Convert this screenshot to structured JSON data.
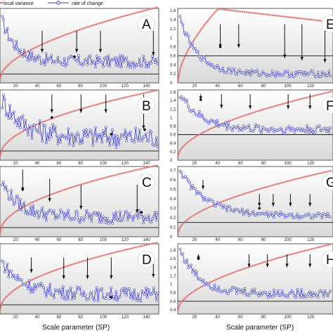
{
  "legend": [
    {
      "label": "local variance",
      "color": "#e07070"
    },
    {
      "label": "rate of change",
      "color": "#3a3ac8"
    }
  ],
  "colors": {
    "variance": "#e07070",
    "roc": "#3a3ac8",
    "roc_fill": "#ffffff",
    "baseline": "#111111",
    "arrow": "#111111"
  },
  "xlabel_left": "Scale parameter (SP)",
  "xlabel_right": "Scale parameter (SP)",
  "chart_data": [
    {
      "type": "line",
      "panel": "A",
      "x_ticks": [
        "20",
        "40",
        "60",
        "80",
        "100",
        "120",
        "140"
      ],
      "y_ticks": [],
      "xlim": [
        5,
        152
      ],
      "ylim": [
        -0.3,
        2.2
      ],
      "baseline": 0,
      "roc_profile": {
        "start": 2.0,
        "decay": 0.075,
        "floor": 0.42,
        "noise": 0.2
      },
      "variance_profile": {
        "x0": 5,
        "y_top": 2.25,
        "scale": 0.55
      },
      "arrows_x": [
        44,
        76,
        98,
        147
      ],
      "arrows_top": [
        1.45,
        1.45,
        1.45,
        1.45
      ],
      "arrows_bottom": [
        0.72,
        0.72,
        0.72,
        0.62
      ],
      "stars": [
        [
          74,
          0.58
        ]
      ]
    },
    {
      "type": "line",
      "panel": "B",
      "x_ticks": [
        "20",
        "40",
        "60",
        "80",
        "100",
        "120",
        "140"
      ],
      "y_ticks": [],
      "xlim": [
        5,
        152
      ],
      "ylim": [
        -0.3,
        2.0
      ],
      "baseline": 0,
      "roc_profile": {
        "start": 1.8,
        "decay": 0.05,
        "floor": 0.45,
        "noise": 0.35
      },
      "variance_profile": {
        "x0": 5,
        "y_top": 2.0,
        "scale": 0.5
      },
      "arrows_x": [
        53,
        80,
        103,
        138
      ],
      "arrows_top": [
        1.85,
        1.85,
        1.85,
        1.85
      ],
      "arrows_bottom": [
        1.25,
        1.25,
        1.25,
        0.72
      ],
      "stars": [
        [
          53,
          1.1
        ],
        [
          108,
          0.55
        ],
        [
          139,
          0.7
        ]
      ]
    },
    {
      "type": "line",
      "panel": "C",
      "x_ticks": [
        "20",
        "40",
        "60",
        "80",
        "100",
        "120",
        "140"
      ],
      "y_ticks": [],
      "xlim": [
        5,
        152
      ],
      "ylim": [
        -0.3,
        2.0
      ],
      "baseline": 0,
      "roc_profile": {
        "start": 1.6,
        "decay": 0.06,
        "floor": 0.35,
        "noise": 0.22
      },
      "variance_profile": {
        "x0": 5,
        "y_top": 2.05,
        "scale": 0.5
      },
      "arrows_x": [
        26,
        51,
        80,
        132
      ],
      "arrows_top": [
        1.9,
        1.6,
        1.4,
        1.4
      ],
      "arrows_bottom": [
        1.2,
        0.85,
        0.6,
        0.48
      ],
      "stars": [
        [
          26,
          1.25
        ],
        [
          136,
          0.5
        ]
      ]
    },
    {
      "type": "line",
      "panel": "D",
      "x_ticks": [
        "20",
        "40",
        "60",
        "80",
        "100",
        "120",
        "140"
      ],
      "y_ticks": [],
      "xlim": [
        5,
        152
      ],
      "ylim": [
        -0.3,
        2.0
      ],
      "baseline": 0,
      "roc_profile": {
        "start": 1.5,
        "decay": 0.05,
        "floor": 0.35,
        "noise": 0.22
      },
      "variance_profile": {
        "x0": 5,
        "y_top": 2.05,
        "scale": 0.5
      },
      "arrows_x": [
        34,
        64,
        86,
        108,
        147
      ],
      "arrows_top": [
        1.55,
        1.55,
        1.55,
        1.55,
        1.55
      ],
      "arrows_bottom": [
        1.05,
        0.85,
        0.85,
        0.85,
        0.9
      ],
      "stars": [
        [
          108,
          0.25
        ]
      ]
    },
    {
      "type": "line",
      "panel": "E",
      "x_ticks": [
        "20",
        "40",
        "60",
        "80",
        "100",
        "120"
      ],
      "y_ticks": [
        "0",
        "0.2",
        "0.4",
        "0.6",
        "0.8",
        "1",
        "1.2",
        "1.4",
        "1.6"
      ],
      "xlim": [
        5,
        140
      ],
      "ylim": [
        0,
        1.65
      ],
      "baseline": 0.6,
      "roc_profile": {
        "start": 1.6,
        "decay": 0.065,
        "floor": 0.2,
        "noise": 0.07
      },
      "variance_profile": {
        "x0": 5,
        "y_top": 1.64,
        "scale": 0.5,
        "peak": 40
      },
      "arrows_x": [
        42,
        58,
        98,
        113,
        133
      ],
      "arrows_top": [
        1.3,
        1.3,
        1.3,
        1.3,
        1.3
      ],
      "arrows_bottom": [
        0.78,
        0.78,
        0.55,
        0.5,
        0.45
      ],
      "stars": [
        [
          42,
          0.8
        ]
      ]
    },
    {
      "type": "line",
      "panel": "F",
      "x_ticks": [
        "20",
        "40",
        "60",
        "80",
        "100",
        "120"
      ],
      "y_ticks": [
        "0",
        "0.2",
        "0.4",
        "0.6",
        "0.8",
        "1",
        "1.2",
        "1.4",
        "1.6"
      ],
      "xlim": [
        5,
        140
      ],
      "ylim": [
        0,
        1.65
      ],
      "baseline": 0.6,
      "roc_profile": {
        "start": 1.65,
        "decay": 0.055,
        "floor": 0.72,
        "noise": 0.1
      },
      "variance_profile": {
        "x0": 5,
        "y_top": 1.62,
        "scale": 0.55
      },
      "arrows_x": [
        25,
        43,
        68,
        101,
        120
      ],
      "arrows_top": [
        1.55,
        1.55,
        1.55,
        1.55,
        1.55
      ],
      "arrows_bottom": [
        1.42,
        1.22,
        1.2,
        1.2,
        1.2
      ],
      "stars": [
        [
          25,
          1.42
        ]
      ]
    },
    {
      "type": "line",
      "panel": "G",
      "x_ticks": [
        "20",
        "40",
        "60",
        "80",
        "100",
        "120"
      ],
      "y_ticks": [
        "0",
        "0.1",
        "0.2",
        "0.3",
        "0.4",
        "0.5",
        "0.6",
        "0.7"
      ],
      "xlim": [
        5,
        140
      ],
      "ylim": [
        0,
        0.74
      ],
      "baseline": 0.15,
      "roc_profile": {
        "start": 0.75,
        "decay": 0.045,
        "floor": 0.22,
        "noise": 0.03
      },
      "variance_profile": {
        "x0": 5,
        "y_top": 0.7,
        "scale": 0.55
      },
      "arrows_x": [
        27,
        76,
        88,
        103,
        120
      ],
      "arrows_top": [
        0.6,
        0.45,
        0.45,
        0.45,
        0.45
      ],
      "arrows_bottom": [
        0.5,
        0.32,
        0.32,
        0.32,
        0.32
      ],
      "stars": [
        [
          76,
          0.3
        ]
      ]
    },
    {
      "type": "line",
      "panel": "H",
      "x_ticks": [
        "20",
        "40",
        "60",
        "80",
        "100",
        "120"
      ],
      "y_ticks": [
        "0.4",
        "0.6",
        "0.8",
        "1",
        "1.2",
        "1.4",
        "1.6",
        "1.8"
      ],
      "xlim": [
        5,
        140
      ],
      "ylim": [
        0.3,
        1.95
      ],
      "baseline": 0.6,
      "roc_profile": {
        "start": 1.95,
        "decay": 0.06,
        "floor": 0.78,
        "noise": 0.1
      },
      "variance_profile": {
        "x0": 5,
        "y_top": 1.95,
        "scale": 0.55
      },
      "arrows_x": [
        23,
        67,
        83,
        100,
        120
      ],
      "arrows_top": [
        1.6,
        1.7,
        1.7,
        1.7,
        1.7
      ],
      "arrows_bottom": [
        1.7,
        1.4,
        1.4,
        1.4,
        1.4
      ],
      "stars": [
        [
          23,
          1.6
        ]
      ]
    }
  ]
}
